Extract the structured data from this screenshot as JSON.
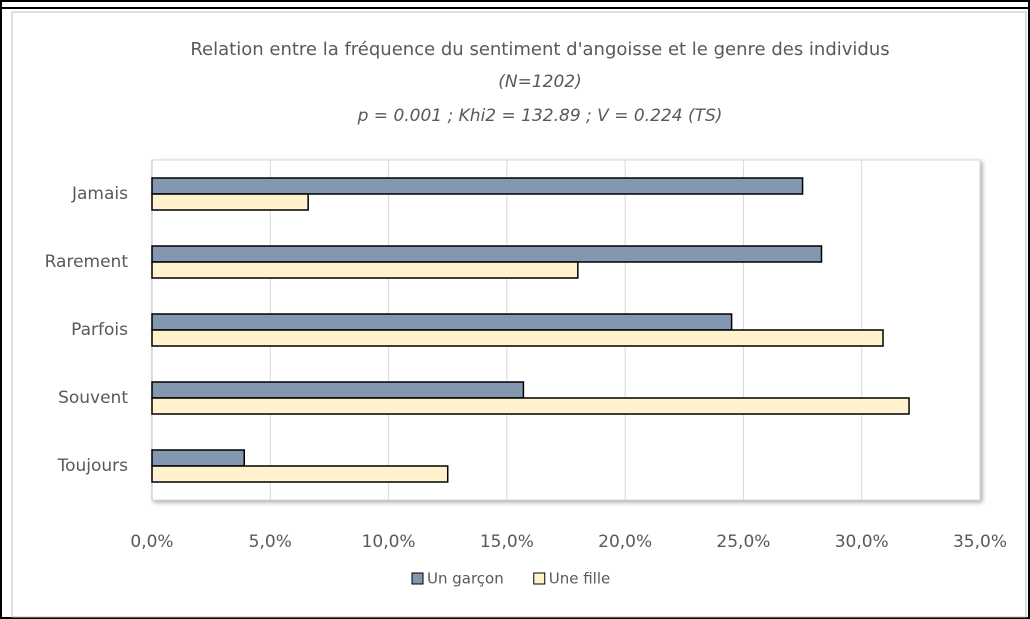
{
  "chart_data": {
    "type": "hbar",
    "title": "Relation entre la fréquence du sentiment d'angoisse et le genre des individus",
    "subtitle": "(N=1202)",
    "annotation": "p = 0.001 ; Khi2 = 132.89 ; V = 0.224 (TS)",
    "categories": [
      "Jamais",
      "Rarement",
      "Parfois",
      "Souvent",
      "Toujours"
    ],
    "series": [
      {
        "name": "Un garçon",
        "color": "#8497b0",
        "values": [
          27.5,
          28.3,
          24.5,
          15.7,
          3.9
        ]
      },
      {
        "name": "Une fille",
        "color": "#fff2cc",
        "values": [
          6.6,
          18.0,
          30.9,
          32.0,
          12.5
        ]
      }
    ],
    "xlim": [
      0,
      35
    ],
    "xticks": [
      {
        "value": 0,
        "label": "0,0%"
      },
      {
        "value": 5,
        "label": "5,0%"
      },
      {
        "value": 10,
        "label": "10,0%"
      },
      {
        "value": 15,
        "label": "15,0%"
      },
      {
        "value": 20,
        "label": "20,0%"
      },
      {
        "value": 25,
        "label": "25,0%"
      },
      {
        "value": 30,
        "label": "30,0%"
      },
      {
        "value": 35,
        "label": "35,0%"
      }
    ],
    "grid": true,
    "legend": "bottom"
  }
}
